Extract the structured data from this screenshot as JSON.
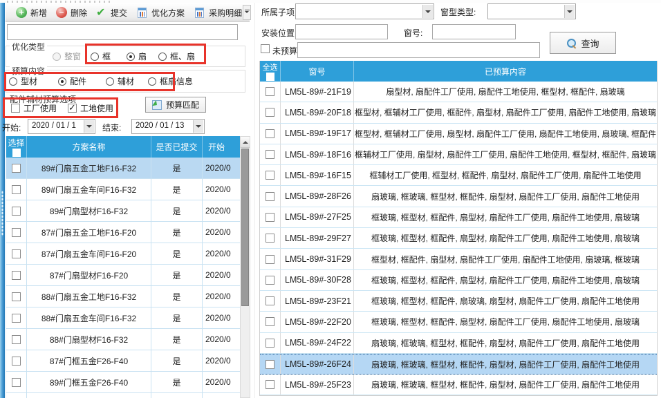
{
  "colors": {
    "header_blue": "#2E9FD9",
    "selected_row_left": "#BAD9F2",
    "selected_row_right": "#B5D7F4",
    "annotation_red": "#E8332A",
    "grid_line": "#C9E2F2"
  },
  "toolbar": {
    "items": [
      {
        "name": "add-button",
        "label": "新增",
        "icon": "add-icon",
        "has_dropdown": false
      },
      {
        "name": "delete-button",
        "label": "删除",
        "icon": "remove-icon",
        "has_dropdown": false
      },
      {
        "name": "submit-button",
        "label": "提交",
        "icon": "check-icon",
        "has_dropdown": false
      },
      {
        "name": "optimize-plan-button",
        "label": "优化方案",
        "icon": "report-icon",
        "has_dropdown": false
      },
      {
        "name": "purchase-detail-button",
        "label": "采购明细",
        "icon": "report-icon",
        "has_dropdown": true
      }
    ]
  },
  "left_panel": {
    "filter_input": {
      "value": "",
      "placeholder": ""
    },
    "optimize_type_group": {
      "label": "优化类型",
      "options": [
        {
          "label": "整窗",
          "state": "disabled"
        },
        {
          "label": "框",
          "state": "unchecked"
        },
        {
          "label": "扇",
          "state": "checked"
        },
        {
          "label": "框、扇",
          "state": "unchecked"
        }
      ]
    },
    "budget_content_group": {
      "label": "预算内容",
      "options": [
        {
          "label": "型材",
          "state": "unchecked"
        },
        {
          "label": "配件",
          "state": "checked"
        },
        {
          "label": "辅材",
          "state": "unchecked"
        },
        {
          "label": "框扇信息",
          "state": "unchecked"
        }
      ]
    },
    "usage_group": {
      "label": "配件辅材预算选项",
      "options": [
        {
          "label": "工厂使用",
          "checked": false
        },
        {
          "label": "工地使用",
          "checked": true
        }
      ]
    },
    "match_button_label": "预算匹配",
    "date_range": {
      "start_label": "开始:",
      "start_value": "2020 / 01 / 1",
      "end_label": "结束:",
      "end_value": "2020 / 01 / 13"
    },
    "plan_table": {
      "columns": [
        "选择",
        "方案名称",
        "是否已提交",
        "开始"
      ],
      "rows": [
        {
          "name": "89#门扇五金工地F16-F32",
          "submitted": "是",
          "start": "2020/0",
          "selected": true
        },
        {
          "name": "89#门扇五金车间F16-F32",
          "submitted": "是",
          "start": "2020/0",
          "selected": false
        },
        {
          "name": "89#门扇型材F16-F32",
          "submitted": "是",
          "start": "2020/0",
          "selected": false
        },
        {
          "name": "87#门扇五金工地F16-F20",
          "submitted": "是",
          "start": "2020/0",
          "selected": false
        },
        {
          "name": "87#门扇五金车间F16-F20",
          "submitted": "是",
          "start": "2020/0",
          "selected": false
        },
        {
          "name": "87#门扇型材F16-F20",
          "submitted": "是",
          "start": "2020/0",
          "selected": false
        },
        {
          "name": "88#门扇五金工地F16-F32",
          "submitted": "是",
          "start": "2020/0",
          "selected": false
        },
        {
          "name": "88#门扇五金车间F16-F32",
          "submitted": "是",
          "start": "2020/0",
          "selected": false
        },
        {
          "name": "88#门扇型材F16-F32",
          "submitted": "是",
          "start": "2020/0",
          "selected": false
        },
        {
          "name": "87#门框五金F26-F40",
          "submitted": "是",
          "start": "2020/0",
          "selected": false
        },
        {
          "name": "89#门框五金F26-F40",
          "submitted": "是",
          "start": "2020/0",
          "selected": false
        },
        {
          "name": "88#门框五金F21-F40",
          "submitted": "是",
          "start": "2020/0",
          "selected": false
        }
      ]
    }
  },
  "right_panel": {
    "filters": {
      "sub_item": {
        "label": "所属子项:",
        "value": ""
      },
      "window_type": {
        "label": "窗型类型:",
        "value": ""
      },
      "install_position": {
        "label": "安装位置:",
        "value": ""
      },
      "window_no": {
        "label": "窗号:",
        "value": ""
      },
      "no_budget": {
        "label": "未预算:",
        "checked": false,
        "value": ""
      },
      "search_button_label": "查询"
    },
    "budget_table": {
      "columns": [
        "全选",
        "窗号",
        "已预算内容"
      ],
      "rows": [
        {
          "window_no": "LM5L-89#-21F19",
          "content": "扇型材, 扇配件工厂使用, 扇配件工地使用, 框型材, 框配件, 扇玻璃",
          "selected": false
        },
        {
          "window_no": "LM5L-89#-20F18",
          "content": "框型材, 框辅材工厂使用, 框配件, 扇型材, 扇配件工厂使用, 扇配件工地使用, 扇玻璃",
          "selected": false
        },
        {
          "window_no": "LM5L-89#-19F17",
          "content": "框型材, 框辅材工厂使用, 扇型材, 扇配件工厂使用, 扇配件工地使用, 扇玻璃, 框配件",
          "selected": false
        },
        {
          "window_no": "LM5L-89#-18F16",
          "content": "框辅材工厂使用, 扇型材, 扇配件工厂使用, 扇配件工地使用, 框型材, 框配件, 扇玻璃",
          "selected": false
        },
        {
          "window_no": "LM5L-89#-16F15",
          "content": "框辅材工厂使用, 框型材, 框配件, 扇型材, 扇配件工厂使用, 扇配件工地使用",
          "selected": false
        },
        {
          "window_no": "LM5L-89#-28F26",
          "content": "扇玻璃, 框玻璃, 框型材, 框配件, 扇型材, 扇配件工厂使用, 扇配件工地使用",
          "selected": false
        },
        {
          "window_no": "LM5L-89#-27F25",
          "content": "框玻璃, 框型材, 框配件, 扇型材, 扇配件工厂使用, 扇配件工地使用, 扇玻璃",
          "selected": false
        },
        {
          "window_no": "LM5L-89#-29F27",
          "content": "框玻璃, 框型材, 框配件, 扇型材, 扇配件工厂使用, 扇配件工地使用, 扇玻璃",
          "selected": false
        },
        {
          "window_no": "LM5L-89#-31F29",
          "content": "框型材, 框配件, 扇型材, 扇配件工厂使用, 扇配件工地使用, 扇玻璃, 框玻璃",
          "selected": false
        },
        {
          "window_no": "LM5L-89#-30F28",
          "content": "框玻璃, 框型材, 框配件, 扇型材, 扇配件工厂使用, 扇配件工地使用, 扇玻璃",
          "selected": false
        },
        {
          "window_no": "LM5L-89#-23F21",
          "content": "框玻璃, 框型材, 框配件, 扇玻璃, 扇型材, 扇配件工厂使用, 扇配件工地使用",
          "selected": false
        },
        {
          "window_no": "LM5L-89#-22F20",
          "content": "框玻璃, 框型材, 框配件, 扇型材, 扇配件工厂使用, 扇配件工地使用, 扇玻璃",
          "selected": false
        },
        {
          "window_no": "LM5L-89#-24F22",
          "content": "扇玻璃, 框玻璃, 框型材, 框配件, 扇型材, 扇配件工厂使用, 扇配件工地使用",
          "selected": false
        },
        {
          "window_no": "LM5L-89#-26F24",
          "content": "扇玻璃, 框玻璃, 框型材, 框配件, 扇型材, 扇配件工厂使用, 扇配件工地使用",
          "selected": true
        },
        {
          "window_no": "LM5L-89#-25F23",
          "content": "扇玻璃, 框玻璃, 框型材, 框配件, 扇型材, 扇配件工厂使用, 扇配件工地使用",
          "selected": false
        }
      ]
    }
  }
}
